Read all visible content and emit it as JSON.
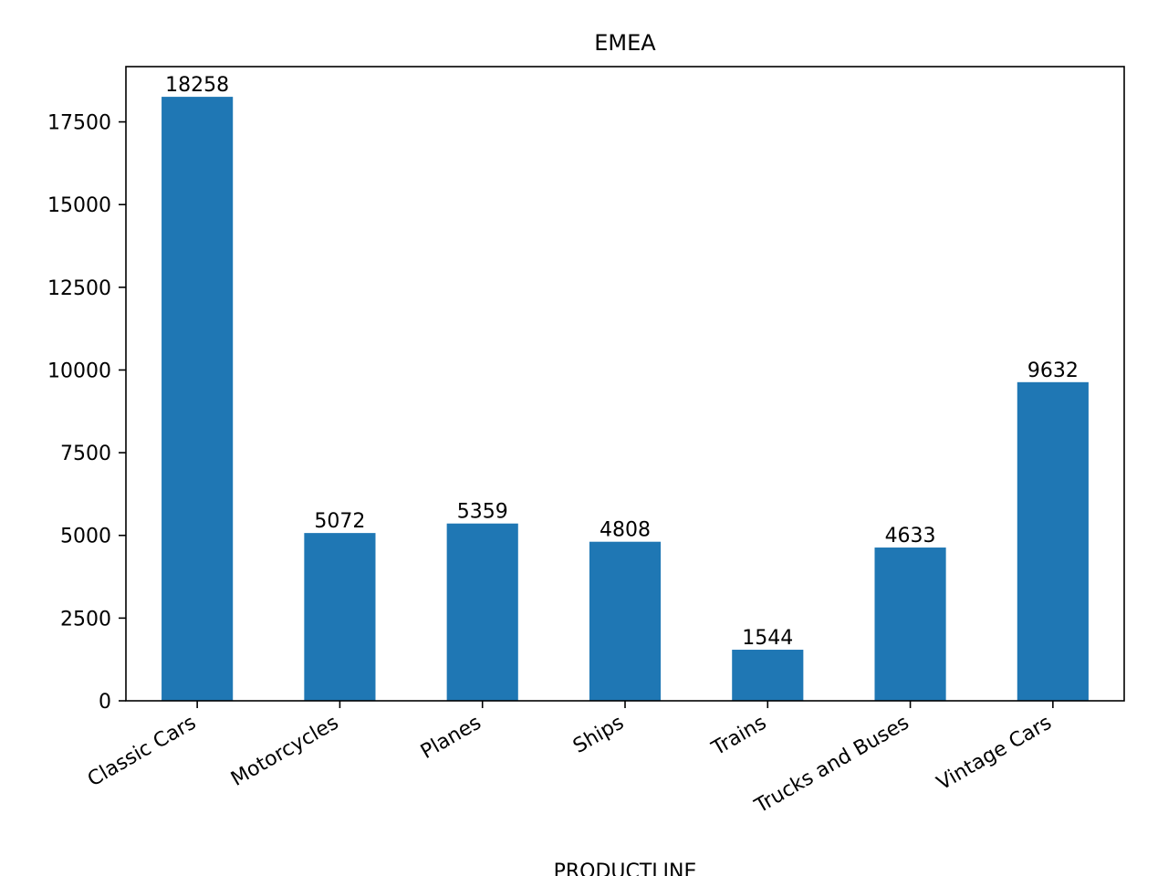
{
  "chart_data": {
    "type": "bar",
    "title": "EMEA",
    "xlabel": "PRODUCTLINE",
    "ylabel": "",
    "categories": [
      "Classic Cars",
      "Motorcycles",
      "Planes",
      "Ships",
      "Trains",
      "Trucks and Buses",
      "Vintage Cars"
    ],
    "values": [
      18258,
      5072,
      5359,
      4808,
      1544,
      4633,
      9632
    ],
    "data_labels": [
      "18258",
      "5072",
      "5359",
      "4808",
      "1544",
      "4633",
      "9632"
    ],
    "yticks": [
      0,
      2500,
      5000,
      7500,
      10000,
      12500,
      15000,
      17500
    ],
    "ylim": [
      0,
      19171
    ],
    "bar_color": "#1f77b4",
    "grid": false,
    "legend": "none"
  }
}
